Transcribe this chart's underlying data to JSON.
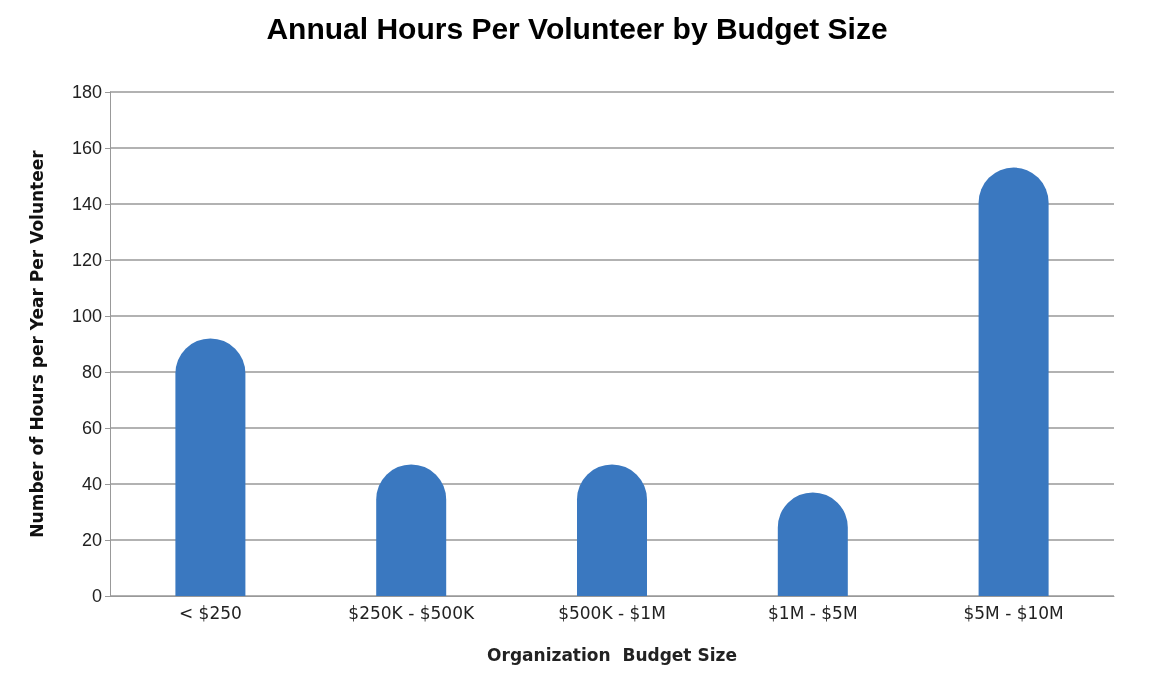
{
  "chart_data": {
    "type": "bar",
    "title": "Annual Hours Per Volunteer by Budget Size",
    "xlabel": "Organization  Budget Size",
    "ylabel": "Number of Hours per Year Per Volunteer",
    "categories": [
      "< $250",
      "$250K - $500K",
      "$500K - $1M",
      "$1M - $5M",
      "$5M - $10M"
    ],
    "values": [
      92,
      47,
      47,
      37,
      153
    ],
    "color": "#3a78c0",
    "ylim": [
      0,
      180
    ],
    "yticks": [
      0,
      20,
      40,
      60,
      80,
      100,
      120,
      140,
      160,
      180
    ],
    "grid": "y"
  }
}
